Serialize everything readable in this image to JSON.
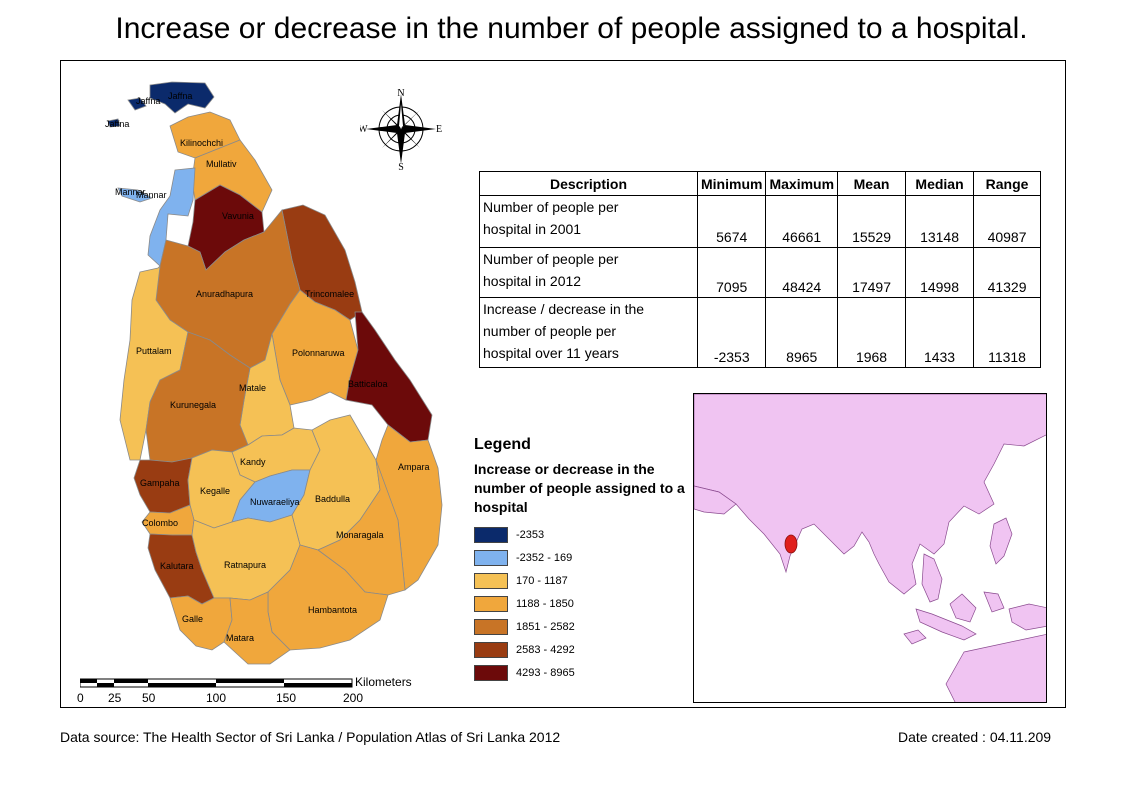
{
  "title": "Increase or decrease in the number of people assigned to a hospital.",
  "colors": {
    "c1": "#0b2a6b",
    "c2": "#7fb2ee",
    "c3": "#f5c155",
    "c4": "#f0a73c",
    "c5": "#c87426",
    "c6": "#993c12",
    "c7": "#6c0a0a",
    "inset_land": "#f0c4f2",
    "srilanka_inset": "#e0201c"
  },
  "districts": [
    {
      "name": "Jaffna",
      "color": "c1"
    },
    {
      "name": "Jaffna",
      "color": "c1"
    },
    {
      "name": "Jaffna",
      "color": "c1"
    },
    {
      "name": "Kilinochchi",
      "color": "c4"
    },
    {
      "name": "Mullativ",
      "color": "c4"
    },
    {
      "name": "Mannar",
      "color": "c2"
    },
    {
      "name": "Mannar",
      "color": "c2"
    },
    {
      "name": "Vavunia",
      "color": "c7"
    },
    {
      "name": "Trincomalee",
      "color": "c6"
    },
    {
      "name": "Anuradhapura",
      "color": "c5"
    },
    {
      "name": "Puttalam",
      "color": "c3"
    },
    {
      "name": "Polonnaruwa",
      "color": "c4"
    },
    {
      "name": "Batticaloa",
      "color": "c7"
    },
    {
      "name": "Matale",
      "color": "c3"
    },
    {
      "name": "Kurunegala",
      "color": "c5"
    },
    {
      "name": "Kandy",
      "color": "c3"
    },
    {
      "name": "Ampara",
      "color": "c4"
    },
    {
      "name": "Gampaha",
      "color": "c6"
    },
    {
      "name": "Kegalle",
      "color": "c3"
    },
    {
      "name": "Nuwaraeliya",
      "color": "c2"
    },
    {
      "name": "Baddulla",
      "color": "c3"
    },
    {
      "name": "Colombo",
      "color": "c4"
    },
    {
      "name": "Monaragala",
      "color": "c4"
    },
    {
      "name": "Kalutara",
      "color": "c6"
    },
    {
      "name": "Ratnapura",
      "color": "c3"
    },
    {
      "name": "Hambantota",
      "color": "c4"
    },
    {
      "name": "Galle",
      "color": "c4"
    },
    {
      "name": "Matara",
      "color": "c4"
    }
  ],
  "table": {
    "headers": [
      "Description",
      "Minimum",
      "Maximum",
      "Mean",
      "Median",
      "Range"
    ],
    "rows": [
      {
        "desc": [
          "Number of people per",
          "hospital in 2001"
        ],
        "min": "5674",
        "max": "46661",
        "mean": "15529",
        "median": "13148",
        "range": "40987"
      },
      {
        "desc": [
          "Number of people per",
          "hospital in 2012"
        ],
        "min": "7095",
        "max": "48424",
        "mean": "17497",
        "median": "14998",
        "range": "41329"
      },
      {
        "desc": [
          "Increase / decrease in the",
          "number of people per",
          "hospital over 11 years"
        ],
        "min": "-2353",
        "max": "8965",
        "mean": "1968",
        "median": "1433",
        "range": "11318"
      }
    ]
  },
  "legend": {
    "heading": "Legend",
    "title": "Increase or decrease in the number of people assigned to a hospital",
    "items": [
      {
        "label": "-2353",
        "color": "c1"
      },
      {
        "label": "-2352 - 169",
        "color": "c2"
      },
      {
        "label": "170 - 1187",
        "color": "c3"
      },
      {
        "label": "1188 - 1850",
        "color": "c4"
      },
      {
        "label": "1851 - 2582",
        "color": "c5"
      },
      {
        "label": "2583 - 4292",
        "color": "c6"
      },
      {
        "label": "4293 - 8965",
        "color": "c7"
      }
    ]
  },
  "scale": {
    "ticks": [
      "0",
      "25",
      "50",
      "100",
      "150",
      "200"
    ],
    "unit": "Kilometers"
  },
  "north_arrow": {
    "n": "N",
    "s": "S",
    "e": "E",
    "w": "W"
  },
  "footer": {
    "source": "Data source: The Health Sector of Sri Lanka / Population Atlas of Sri Lanka 2012",
    "date": "Date created : 04.11.209"
  }
}
